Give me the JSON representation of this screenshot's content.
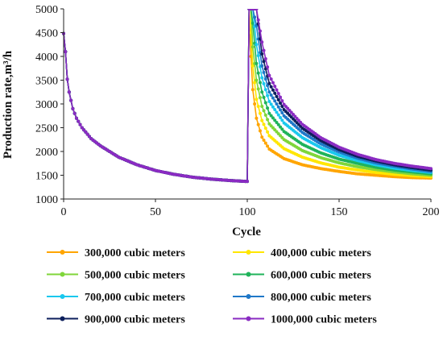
{
  "chart_data": {
    "type": "line",
    "title": "",
    "xlabel": "Cycle",
    "ylabel": "Production rate,m³/h",
    "xlim": [
      0,
      200
    ],
    "ylim": [
      1000,
      5000
    ],
    "xticks": [
      0,
      50,
      100,
      150,
      200
    ],
    "yticks": [
      1000,
      1500,
      2000,
      2500,
      3000,
      3500,
      4000,
      4500,
      5000
    ],
    "grid": false,
    "legend_position": "bottom",
    "legend_columns": 2,
    "shared_phase": {
      "x": [
        0,
        1,
        2,
        3,
        5,
        7,
        10,
        15,
        20,
        30,
        40,
        50,
        60,
        70,
        80,
        90,
        99,
        100
      ],
      "y": [
        4480,
        4100,
        3520,
        3250,
        2900,
        2700,
        2500,
        2270,
        2120,
        1880,
        1720,
        1600,
        1520,
        1460,
        1420,
        1390,
        1370,
        1370
      ]
    },
    "series": [
      {
        "name": "300,000 cubic meters",
        "color": "#FFA500",
        "x": [
          100,
          101,
          102,
          103,
          105,
          108,
          112,
          120,
          130,
          140,
          150,
          160,
          170,
          180,
          190,
          200
        ],
        "y": [
          1370,
          5000,
          4000,
          3300,
          2700,
          2300,
          2050,
          1850,
          1720,
          1640,
          1580,
          1530,
          1500,
          1470,
          1450,
          1440
        ]
      },
      {
        "name": "400,000 cubic meters",
        "color": "#FFE600",
        "x": [
          100,
          101,
          102,
          103,
          105,
          108,
          112,
          120,
          130,
          140,
          150,
          160,
          170,
          180,
          190,
          200
        ],
        "y": [
          1370,
          5000,
          4500,
          3800,
          3100,
          2650,
          2330,
          2060,
          1880,
          1760,
          1670,
          1610,
          1560,
          1520,
          1490,
          1470
        ]
      },
      {
        "name": "500,000 cubic meters",
        "color": "#7FD63A",
        "x": [
          100,
          101,
          102,
          103,
          105,
          108,
          112,
          120,
          130,
          140,
          150,
          160,
          170,
          180,
          190,
          200
        ],
        "y": [
          1370,
          5000,
          5000,
          4200,
          3500,
          2950,
          2580,
          2250,
          2020,
          1870,
          1760,
          1680,
          1620,
          1570,
          1530,
          1500
        ]
      },
      {
        "name": "600,000 cubic meters",
        "color": "#1FB35A",
        "x": [
          100,
          101,
          102,
          103,
          105,
          108,
          112,
          120,
          130,
          140,
          150,
          160,
          170,
          180,
          190,
          200
        ],
        "y": [
          1370,
          5000,
          5000,
          4700,
          3850,
          3250,
          2800,
          2420,
          2150,
          1970,
          1840,
          1750,
          1670,
          1610,
          1570,
          1530
        ]
      },
      {
        "name": "700,000 cubic meters",
        "color": "#1AC8EE",
        "x": [
          100,
          101,
          102,
          103,
          105,
          108,
          112,
          120,
          130,
          140,
          150,
          160,
          170,
          180,
          190,
          200
        ],
        "y": [
          1370,
          5000,
          5000,
          5000,
          4250,
          3550,
          3050,
          2600,
          2290,
          2080,
          1920,
          1810,
          1720,
          1650,
          1600,
          1560
        ]
      },
      {
        "name": "800,000 cubic meters",
        "color": "#1F78C8",
        "x": [
          100,
          101,
          102,
          103,
          105,
          108,
          112,
          120,
          130,
          140,
          150,
          160,
          170,
          180,
          190,
          200
        ],
        "y": [
          1370,
          5000,
          5000,
          5000,
          4650,
          3800,
          3250,
          2750,
          2400,
          2160,
          1990,
          1860,
          1760,
          1690,
          1630,
          1580
        ]
      },
      {
        "name": "900,000 cubic meters",
        "color": "#0D1F5C",
        "x": [
          100,
          101,
          102,
          103,
          105,
          108,
          112,
          120,
          130,
          140,
          150,
          160,
          170,
          180,
          190,
          200
        ],
        "y": [
          1370,
          5000,
          5000,
          5000,
          5000,
          4050,
          3430,
          2880,
          2490,
          2230,
          2040,
          1900,
          1800,
          1720,
          1660,
          1610
        ]
      },
      {
        "name": "1000,000 cubic meters",
        "color": "#8A2BC2",
        "x": [
          100,
          101,
          102,
          103,
          105,
          108,
          112,
          120,
          130,
          140,
          150,
          160,
          170,
          180,
          190,
          200
        ],
        "y": [
          1370,
          5000,
          5000,
          5000,
          5000,
          4300,
          3600,
          2990,
          2570,
          2290,
          2090,
          1940,
          1830,
          1750,
          1690,
          1640
        ]
      }
    ]
  }
}
